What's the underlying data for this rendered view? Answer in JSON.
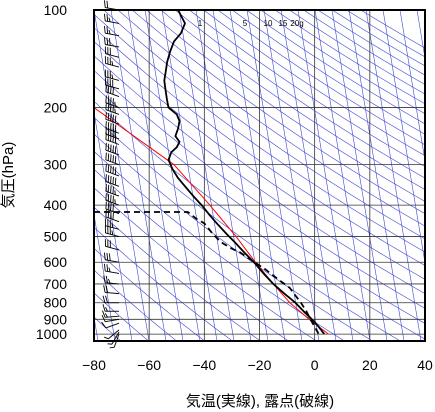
{
  "chart_data": {
    "type": "line",
    "xlabel": "気温(実線), 露点(破線)",
    "ylabel": "気圧(hPa)",
    "xlim": [
      -80,
      40
    ],
    "ylim": [
      1050,
      100
    ],
    "y_scale": "log",
    "grid": true,
    "x_ticks": [
      -80,
      -60,
      -40,
      -20,
      0,
      20,
      40
    ],
    "y_ticks": [
      100,
      200,
      300,
      400,
      500,
      600,
      700,
      800,
      900,
      1000
    ],
    "mixing_ratio_labels": [
      "1",
      "5",
      "10",
      "15",
      "20g"
    ],
    "colors": {
      "temperature": "#000000",
      "dewpoint": "#000000",
      "parcel": "#ff0000",
      "background_lines": "#3b46d6",
      "grid": "#333333"
    },
    "series": [
      {
        "key": "temperature",
        "style": "solid",
        "points": [
          [
            -49.5,
            100
          ],
          [
            -47,
            110
          ],
          [
            -48.5,
            118
          ],
          [
            -51,
            125
          ],
          [
            -52.5,
            135
          ],
          [
            -53.5,
            145
          ],
          [
            -54,
            155
          ],
          [
            -54.5,
            165
          ],
          [
            -54,
            178
          ],
          [
            -53.5,
            190
          ],
          [
            -53,
            200
          ],
          [
            -50,
            210
          ],
          [
            -49,
            220
          ],
          [
            -49.5,
            232
          ],
          [
            -50.5,
            245
          ],
          [
            -49,
            255
          ],
          [
            -50,
            265
          ],
          [
            -52,
            275
          ],
          [
            -53,
            290
          ],
          [
            -51.5,
            310
          ],
          [
            -49.5,
            330
          ],
          [
            -47,
            350
          ],
          [
            -44,
            375
          ],
          [
            -41,
            400
          ],
          [
            -38,
            430
          ],
          [
            -35,
            460
          ],
          [
            -32,
            490
          ],
          [
            -29,
            520
          ],
          [
            -25.5,
            560
          ],
          [
            -22,
            600
          ],
          [
            -18.5,
            650
          ],
          [
            -15,
            700
          ],
          [
            -11,
            750
          ],
          [
            -7,
            800
          ],
          [
            -4,
            850
          ],
          [
            -1,
            900
          ],
          [
            1.5,
            950
          ],
          [
            3.5,
            1000
          ]
        ]
      },
      {
        "key": "dewpoint",
        "style": "dashed",
        "points": [
          [
            -80,
            420
          ],
          [
            -46,
            420
          ],
          [
            -43,
            440
          ],
          [
            -40,
            455
          ],
          [
            -37,
            490
          ],
          [
            -34,
            520
          ],
          [
            -30,
            545
          ],
          [
            -27,
            560
          ],
          [
            -23,
            590
          ],
          [
            -18,
            630
          ],
          [
            -13,
            680
          ],
          [
            -9,
            720
          ],
          [
            -7,
            760
          ],
          [
            -5,
            800
          ],
          [
            -3,
            850
          ],
          [
            -1.5,
            900
          ],
          [
            0,
            950
          ],
          [
            1.5,
            1000
          ]
        ]
      },
      {
        "key": "parcel",
        "style": "solid",
        "points": [
          [
            5,
            1000
          ],
          [
            -2,
            900
          ],
          [
            -9,
            800
          ],
          [
            -15,
            700
          ],
          [
            -21.5,
            600
          ],
          [
            -28.5,
            500
          ],
          [
            -38,
            400
          ],
          [
            -51,
            300
          ],
          [
            -80,
            200
          ]
        ]
      }
    ],
    "wind_barbs": [
      {
        "p": 1000,
        "speed": 5,
        "dir": 200
      },
      {
        "p": 985,
        "speed": 5,
        "dir": 210
      },
      {
        "p": 970,
        "speed": 5,
        "dir": 230
      },
      {
        "p": 925,
        "speed": 10,
        "dir": 250
      },
      {
        "p": 900,
        "speed": 10,
        "dir": 260
      },
      {
        "p": 880,
        "speed": 15,
        "dir": 265
      },
      {
        "p": 850,
        "speed": 15,
        "dir": 270
      },
      {
        "p": 800,
        "speed": 20,
        "dir": 270
      },
      {
        "p": 750,
        "speed": 20,
        "dir": 275
      },
      {
        "p": 700,
        "speed": 25,
        "dir": 275
      },
      {
        "p": 650,
        "speed": 25,
        "dir": 280
      },
      {
        "p": 600,
        "speed": 30,
        "dir": 280
      },
      {
        "p": 550,
        "speed": 30,
        "dir": 285
      },
      {
        "p": 500,
        "speed": 35,
        "dir": 285
      },
      {
        "p": 475,
        "speed": 35,
        "dir": 285
      },
      {
        "p": 450,
        "speed": 40,
        "dir": 290
      },
      {
        "p": 425,
        "speed": 40,
        "dir": 290
      },
      {
        "p": 400,
        "speed": 45,
        "dir": 290
      },
      {
        "p": 375,
        "speed": 45,
        "dir": 290
      },
      {
        "p": 350,
        "speed": 50,
        "dir": 290
      },
      {
        "p": 325,
        "speed": 50,
        "dir": 290
      },
      {
        "p": 300,
        "speed": 50,
        "dir": 290
      },
      {
        "p": 280,
        "speed": 55,
        "dir": 290
      },
      {
        "p": 260,
        "speed": 55,
        "dir": 290
      },
      {
        "p": 250,
        "speed": 55,
        "dir": 290
      },
      {
        "p": 240,
        "speed": 50,
        "dir": 290
      },
      {
        "p": 225,
        "speed": 50,
        "dir": 290
      },
      {
        "p": 210,
        "speed": 45,
        "dir": 290
      },
      {
        "p": 200,
        "speed": 45,
        "dir": 290
      },
      {
        "p": 185,
        "speed": 40,
        "dir": 290
      },
      {
        "p": 175,
        "speed": 40,
        "dir": 285
      },
      {
        "p": 165,
        "speed": 35,
        "dir": 285
      },
      {
        "p": 150,
        "speed": 35,
        "dir": 285
      },
      {
        "p": 140,
        "speed": 30,
        "dir": 285
      },
      {
        "p": 130,
        "speed": 30,
        "dir": 280
      },
      {
        "p": 120,
        "speed": 25,
        "dir": 280
      },
      {
        "p": 110,
        "speed": 25,
        "dir": 280
      },
      {
        "p": 100,
        "speed": 20,
        "dir": 280
      }
    ]
  }
}
